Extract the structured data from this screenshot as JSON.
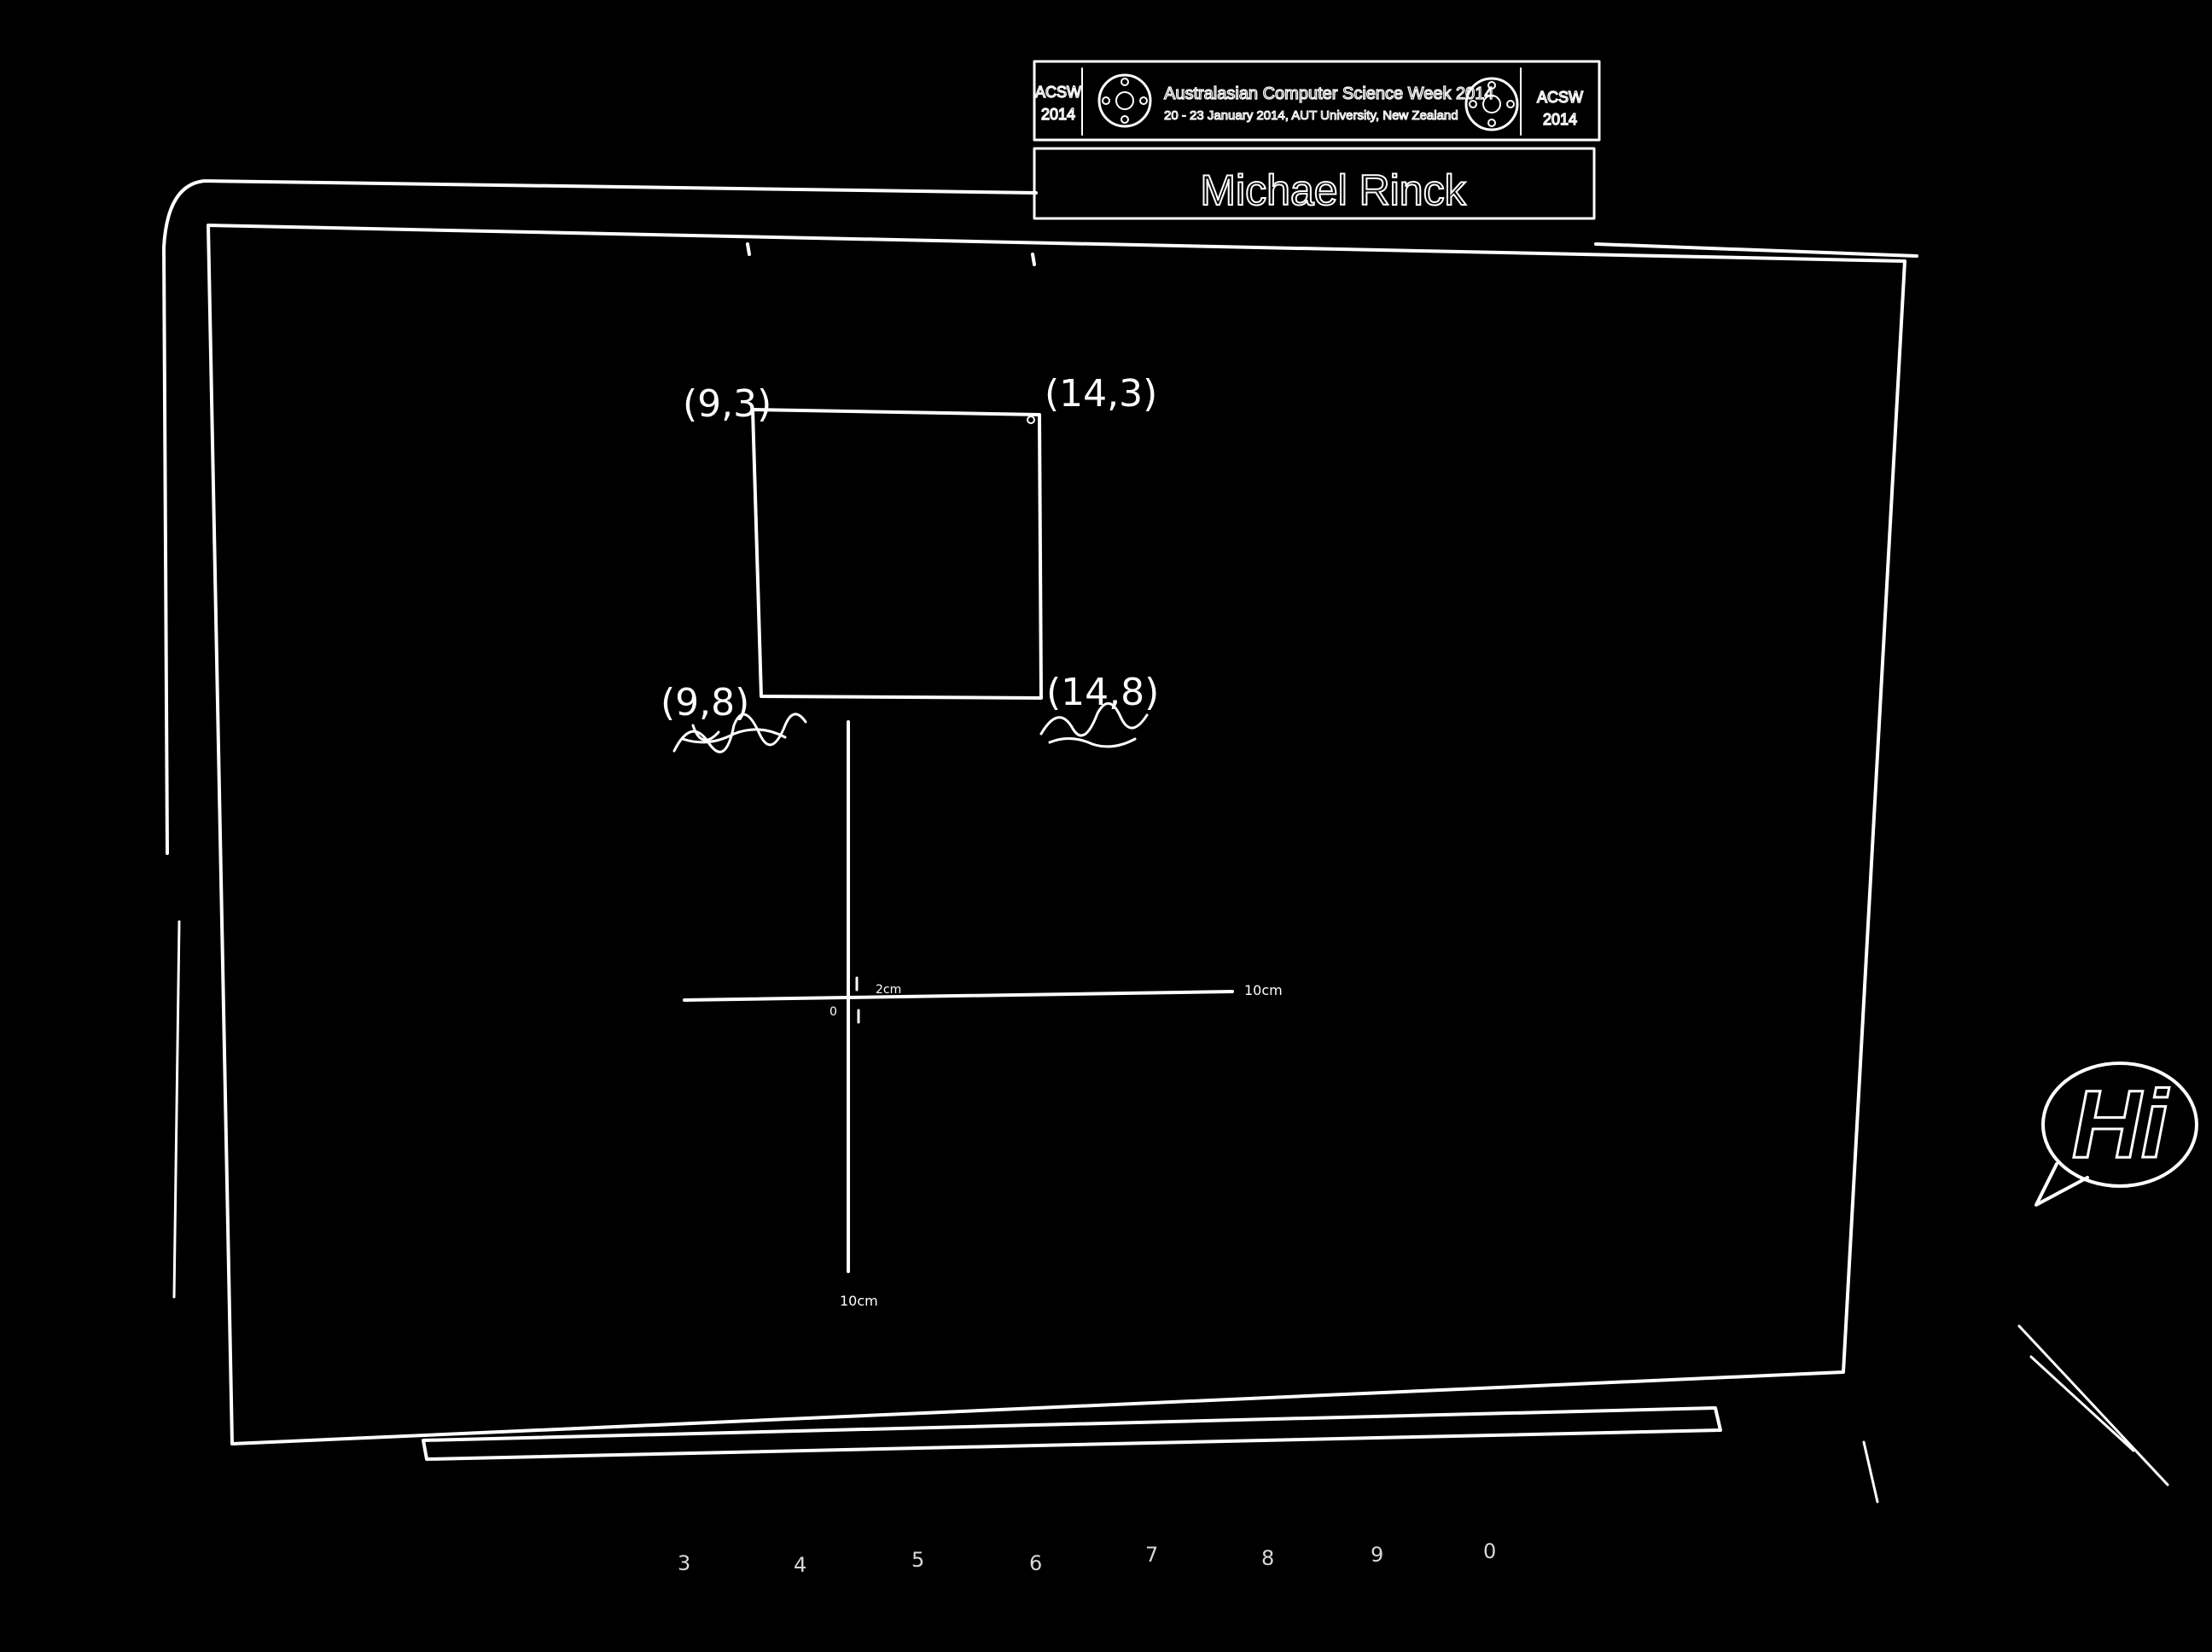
{
  "name_badge": {
    "left_logo_text": "ACSW",
    "left_logo_year": "2014",
    "event_title": "Australasian Computer Science Week 2014",
    "event_dates": "20 - 23 January 2014, AUT University, New Zealand",
    "right_logo_text": "ACSW",
    "right_logo_year": "2014",
    "person_name": "Michael Rinck"
  },
  "screen": {
    "corner_labels": {
      "top_left": "(9,3)",
      "top_right": "(14,3)",
      "bottom_left": "(9,8)",
      "bottom_right": "(14,8)"
    },
    "axes": {
      "origin_label": "0",
      "x_near_label": "2cm",
      "x_end_label": "10cm",
      "y_end_label": "10cm"
    }
  },
  "sticker": {
    "text": "Hi"
  },
  "keyboard": {
    "keys": [
      "3",
      "4",
      "5",
      "6",
      "7",
      "8",
      "9",
      "0"
    ]
  },
  "colors": {
    "background": "#000000",
    "lines": "#ffffff"
  }
}
